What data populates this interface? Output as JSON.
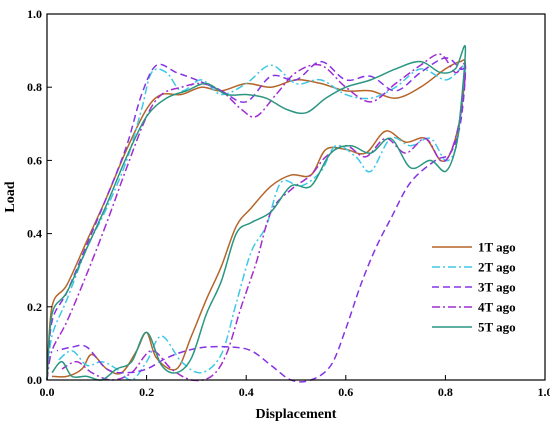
{
  "chart_data": {
    "type": "line",
    "xlabel": "Displacement",
    "ylabel": "Load",
    "xlim": [
      0.0,
      1.0
    ],
    "ylim": [
      0.0,
      1.0
    ],
    "xticks": [
      "0.0",
      "0.2",
      "0.4",
      "0.6",
      "0.8",
      "1.0"
    ],
    "yticks": [
      "0.0",
      "0.2",
      "0.4",
      "0.6",
      "0.8",
      "1.0"
    ],
    "grid": false,
    "legend_position": "lower-right",
    "series": [
      {
        "name": "1T ago",
        "color": "#b5652a",
        "dash": "solid",
        "points": [
          [
            0.0,
            0.0
          ],
          [
            0.01,
            0.2
          ],
          [
            0.04,
            0.26
          ],
          [
            0.08,
            0.38
          ],
          [
            0.12,
            0.5
          ],
          [
            0.16,
            0.63
          ],
          [
            0.2,
            0.74
          ],
          [
            0.23,
            0.78
          ],
          [
            0.27,
            0.78
          ],
          [
            0.31,
            0.8
          ],
          [
            0.35,
            0.79
          ],
          [
            0.4,
            0.81
          ],
          [
            0.45,
            0.8
          ],
          [
            0.5,
            0.82
          ],
          [
            0.55,
            0.81
          ],
          [
            0.6,
            0.79
          ],
          [
            0.65,
            0.79
          ],
          [
            0.7,
            0.77
          ],
          [
            0.75,
            0.8
          ],
          [
            0.8,
            0.85
          ],
          [
            0.83,
            0.87
          ],
          [
            0.84,
            0.86
          ],
          [
            0.83,
            0.72
          ],
          [
            0.81,
            0.62
          ],
          [
            0.79,
            0.6
          ],
          [
            0.76,
            0.66
          ],
          [
            0.72,
            0.65
          ],
          [
            0.68,
            0.68
          ],
          [
            0.64,
            0.62
          ],
          [
            0.6,
            0.63
          ],
          [
            0.56,
            0.63
          ],
          [
            0.53,
            0.56
          ],
          [
            0.49,
            0.56
          ],
          [
            0.45,
            0.53
          ],
          [
            0.41,
            0.47
          ],
          [
            0.38,
            0.42
          ],
          [
            0.35,
            0.31
          ],
          [
            0.32,
            0.22
          ],
          [
            0.29,
            0.12
          ],
          [
            0.26,
            0.03
          ],
          [
            0.22,
            0.06
          ],
          [
            0.2,
            0.13
          ],
          [
            0.18,
            0.08
          ],
          [
            0.15,
            0.02
          ],
          [
            0.12,
            0.03
          ],
          [
            0.09,
            0.07
          ],
          [
            0.07,
            0.03
          ],
          [
            0.04,
            0.01
          ],
          [
            0.01,
            0.01
          ]
        ]
      },
      {
        "name": "2T ago",
        "color": "#3ec8e6",
        "dash": "dashdot",
        "points": [
          [
            0.0,
            0.0
          ],
          [
            0.01,
            0.12
          ],
          [
            0.04,
            0.22
          ],
          [
            0.08,
            0.36
          ],
          [
            0.12,
            0.47
          ],
          [
            0.16,
            0.6
          ],
          [
            0.19,
            0.74
          ],
          [
            0.21,
            0.84
          ],
          [
            0.24,
            0.84
          ],
          [
            0.27,
            0.79
          ],
          [
            0.31,
            0.82
          ],
          [
            0.35,
            0.78
          ],
          [
            0.4,
            0.81
          ],
          [
            0.45,
            0.86
          ],
          [
            0.5,
            0.81
          ],
          [
            0.55,
            0.82
          ],
          [
            0.6,
            0.78
          ],
          [
            0.65,
            0.77
          ],
          [
            0.7,
            0.8
          ],
          [
            0.75,
            0.85
          ],
          [
            0.8,
            0.82
          ],
          [
            0.83,
            0.85
          ],
          [
            0.84,
            0.86
          ],
          [
            0.83,
            0.72
          ],
          [
            0.82,
            0.63
          ],
          [
            0.8,
            0.6
          ],
          [
            0.77,
            0.66
          ],
          [
            0.73,
            0.64
          ],
          [
            0.69,
            0.66
          ],
          [
            0.65,
            0.57
          ],
          [
            0.62,
            0.61
          ],
          [
            0.58,
            0.64
          ],
          [
            0.55,
            0.57
          ],
          [
            0.51,
            0.53
          ],
          [
            0.47,
            0.54
          ],
          [
            0.44,
            0.42
          ],
          [
            0.41,
            0.35
          ],
          [
            0.38,
            0.21
          ],
          [
            0.35,
            0.07
          ],
          [
            0.31,
            0.02
          ],
          [
            0.27,
            0.05
          ],
          [
            0.23,
            0.12
          ],
          [
            0.2,
            0.05
          ],
          [
            0.17,
            0.0
          ],
          [
            0.14,
            0.03
          ],
          [
            0.11,
            0.05
          ],
          [
            0.08,
            0.04
          ],
          [
            0.05,
            0.08
          ],
          [
            0.02,
            0.05
          ]
        ]
      },
      {
        "name": "3T ago",
        "color": "#8533e6",
        "dash": "dash",
        "points": [
          [
            0.0,
            0.0
          ],
          [
            0.01,
            0.16
          ],
          [
            0.04,
            0.24
          ],
          [
            0.08,
            0.37
          ],
          [
            0.12,
            0.5
          ],
          [
            0.16,
            0.64
          ],
          [
            0.19,
            0.78
          ],
          [
            0.22,
            0.86
          ],
          [
            0.26,
            0.84
          ],
          [
            0.3,
            0.82
          ],
          [
            0.35,
            0.79
          ],
          [
            0.4,
            0.76
          ],
          [
            0.45,
            0.83
          ],
          [
            0.5,
            0.82
          ],
          [
            0.55,
            0.87
          ],
          [
            0.6,
            0.82
          ],
          [
            0.65,
            0.83
          ],
          [
            0.7,
            0.79
          ],
          [
            0.75,
            0.84
          ],
          [
            0.8,
            0.88
          ],
          [
            0.83,
            0.85
          ],
          [
            0.84,
            0.84
          ],
          [
            0.83,
            0.7
          ],
          [
            0.81,
            0.62
          ],
          [
            0.78,
            0.6
          ],
          [
            0.73,
            0.54
          ],
          [
            0.69,
            0.44
          ],
          [
            0.66,
            0.36
          ],
          [
            0.63,
            0.26
          ],
          [
            0.6,
            0.14
          ],
          [
            0.57,
            0.04
          ],
          [
            0.53,
            0.0
          ],
          [
            0.49,
            0.0
          ],
          [
            0.45,
            0.04
          ],
          [
            0.41,
            0.08
          ],
          [
            0.37,
            0.09
          ],
          [
            0.32,
            0.09
          ],
          [
            0.28,
            0.08
          ],
          [
            0.24,
            0.06
          ],
          [
            0.2,
            0.03
          ],
          [
            0.16,
            0.02
          ],
          [
            0.12,
            0.03
          ],
          [
            0.08,
            0.09
          ],
          [
            0.05,
            0.09
          ],
          [
            0.02,
            0.08
          ]
        ]
      },
      {
        "name": "4T ago",
        "color": "#a22cd0",
        "dash": "dashdot",
        "points": [
          [
            0.0,
            0.0
          ],
          [
            0.01,
            0.08
          ],
          [
            0.04,
            0.16
          ],
          [
            0.08,
            0.29
          ],
          [
            0.12,
            0.43
          ],
          [
            0.16,
            0.58
          ],
          [
            0.2,
            0.72
          ],
          [
            0.23,
            0.78
          ],
          [
            0.27,
            0.8
          ],
          [
            0.31,
            0.81
          ],
          [
            0.35,
            0.79
          ],
          [
            0.39,
            0.74
          ],
          [
            0.42,
            0.72
          ],
          [
            0.46,
            0.78
          ],
          [
            0.5,
            0.84
          ],
          [
            0.55,
            0.86
          ],
          [
            0.6,
            0.8
          ],
          [
            0.65,
            0.76
          ],
          [
            0.7,
            0.81
          ],
          [
            0.75,
            0.86
          ],
          [
            0.79,
            0.89
          ],
          [
            0.82,
            0.84
          ],
          [
            0.84,
            0.86
          ],
          [
            0.83,
            0.72
          ],
          [
            0.81,
            0.62
          ],
          [
            0.79,
            0.6
          ],
          [
            0.76,
            0.66
          ],
          [
            0.72,
            0.62
          ],
          [
            0.68,
            0.66
          ],
          [
            0.64,
            0.61
          ],
          [
            0.6,
            0.64
          ],
          [
            0.56,
            0.61
          ],
          [
            0.53,
            0.56
          ],
          [
            0.49,
            0.52
          ],
          [
            0.45,
            0.46
          ],
          [
            0.42,
            0.32
          ],
          [
            0.39,
            0.2
          ],
          [
            0.36,
            0.07
          ],
          [
            0.33,
            0.01
          ],
          [
            0.29,
            0.0
          ],
          [
            0.25,
            0.03
          ],
          [
            0.21,
            0.08
          ],
          [
            0.17,
            0.02
          ],
          [
            0.13,
            0.0
          ],
          [
            0.09,
            0.02
          ],
          [
            0.06,
            0.05
          ],
          [
            0.03,
            0.03
          ]
        ]
      },
      {
        "name": "5T ago",
        "color": "#2a9682",
        "dash": "solid",
        "points": [
          [
            0.0,
            0.0
          ],
          [
            0.01,
            0.18
          ],
          [
            0.04,
            0.24
          ],
          [
            0.08,
            0.36
          ],
          [
            0.12,
            0.48
          ],
          [
            0.16,
            0.61
          ],
          [
            0.2,
            0.72
          ],
          [
            0.24,
            0.77
          ],
          [
            0.28,
            0.79
          ],
          [
            0.32,
            0.81
          ],
          [
            0.36,
            0.78
          ],
          [
            0.4,
            0.78
          ],
          [
            0.44,
            0.77
          ],
          [
            0.48,
            0.74
          ],
          [
            0.52,
            0.73
          ],
          [
            0.56,
            0.77
          ],
          [
            0.6,
            0.8
          ],
          [
            0.65,
            0.82
          ],
          [
            0.7,
            0.85
          ],
          [
            0.75,
            0.87
          ],
          [
            0.79,
            0.84
          ],
          [
            0.82,
            0.85
          ],
          [
            0.84,
            0.91
          ],
          [
            0.83,
            0.73
          ],
          [
            0.82,
            0.63
          ],
          [
            0.8,
            0.57
          ],
          [
            0.77,
            0.6
          ],
          [
            0.73,
            0.58
          ],
          [
            0.69,
            0.66
          ],
          [
            0.65,
            0.62
          ],
          [
            0.61,
            0.64
          ],
          [
            0.57,
            0.62
          ],
          [
            0.53,
            0.53
          ],
          [
            0.49,
            0.53
          ],
          [
            0.45,
            0.46
          ],
          [
            0.41,
            0.43
          ],
          [
            0.38,
            0.4
          ],
          [
            0.35,
            0.27
          ],
          [
            0.32,
            0.18
          ],
          [
            0.29,
            0.06
          ],
          [
            0.26,
            0.02
          ],
          [
            0.23,
            0.04
          ],
          [
            0.2,
            0.13
          ],
          [
            0.17,
            0.05
          ],
          [
            0.14,
            0.03
          ],
          [
            0.11,
            0.0
          ],
          [
            0.08,
            0.01
          ],
          [
            0.05,
            0.01
          ],
          [
            0.03,
            0.05
          ],
          [
            0.01,
            0.02
          ]
        ]
      }
    ]
  }
}
